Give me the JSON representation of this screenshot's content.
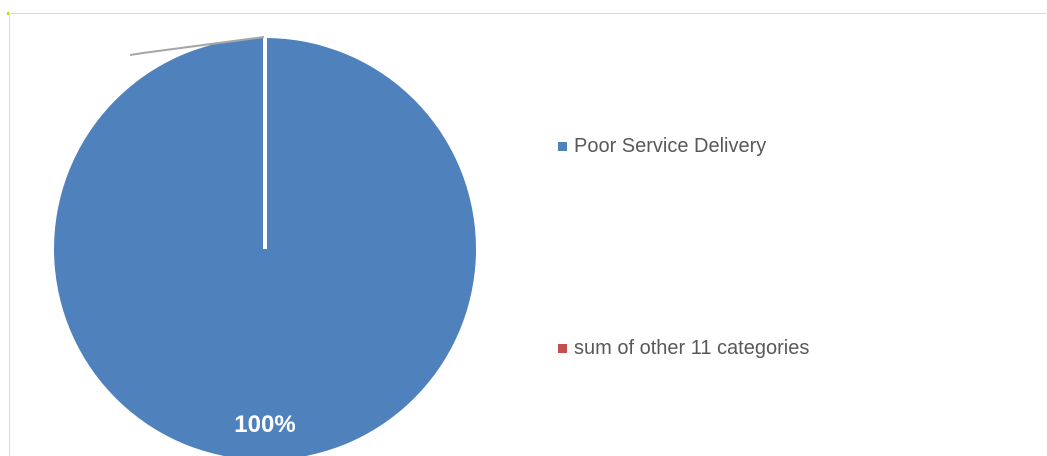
{
  "chart_data": {
    "type": "pie",
    "title": "",
    "slices": [
      {
        "name": "Poor Service Delivery",
        "value": 100,
        "label": "100%",
        "color": "#4f81bd"
      },
      {
        "name": "sum of other 11 categories",
        "value": 0,
        "label": "",
        "color": "#c0504d"
      }
    ],
    "legend_position": "right"
  }
}
